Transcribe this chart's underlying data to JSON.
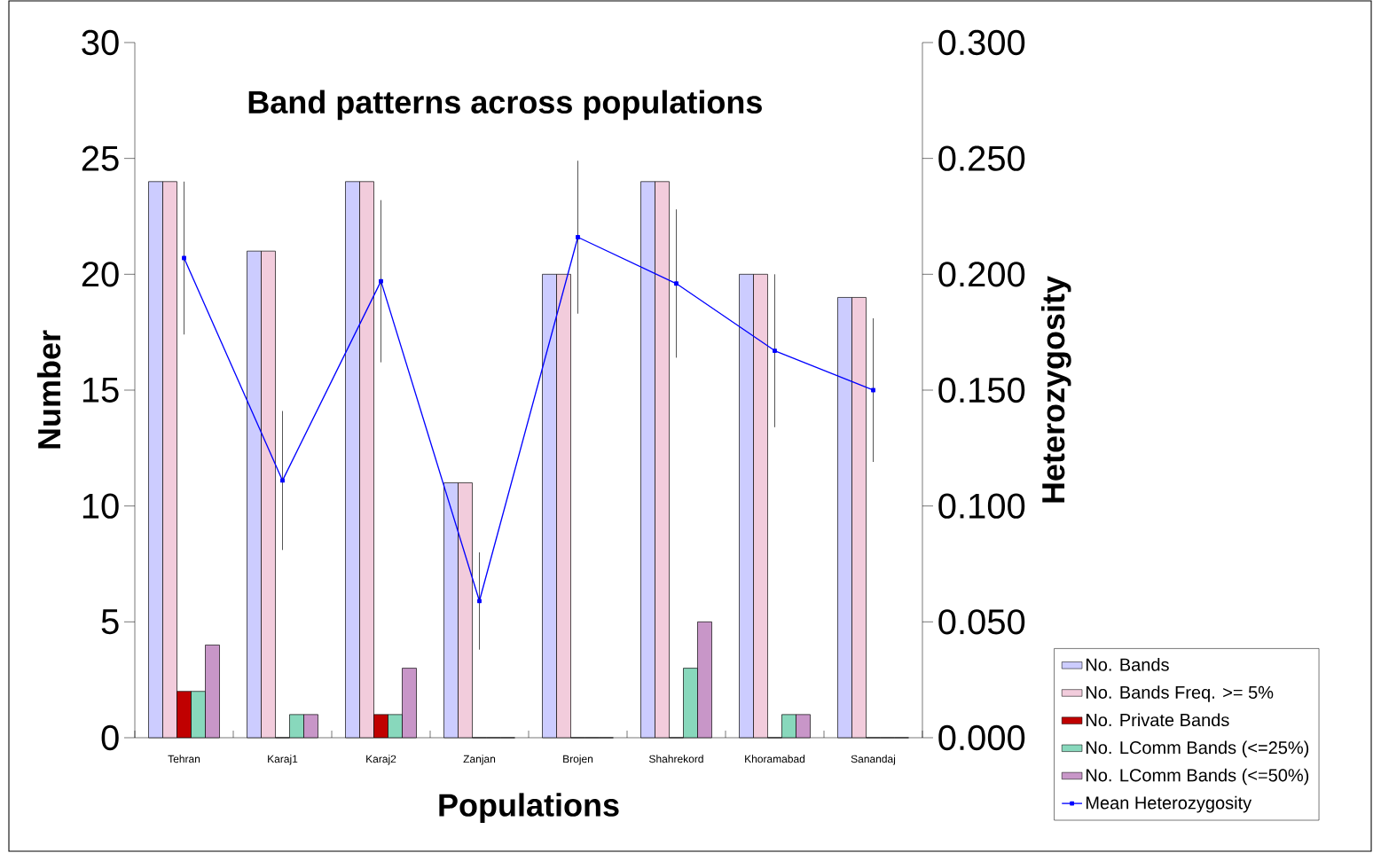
{
  "chart_data": {
    "type": "bar",
    "title": "Band patterns across populations",
    "xlabel": "Populations",
    "ylabel": "Number",
    "y2label": "Heterozygosity",
    "categories": [
      "Tehran",
      "Karaj1",
      "Karaj2",
      "Zanjan",
      "Brojen",
      "Shahrekord",
      "Khoramabad",
      "Sanandaj"
    ],
    "series": [
      {
        "name": "No. Bands",
        "color": "#ccccff",
        "values": [
          24,
          21,
          24,
          11,
          20,
          24,
          20,
          19
        ]
      },
      {
        "name": "No. Bands Freq. >= 5%",
        "color": "#f2ccdc",
        "values": [
          24,
          21,
          24,
          11,
          20,
          24,
          20,
          19
        ]
      },
      {
        "name": "No. Private Bands",
        "color": "#c00000",
        "values": [
          2,
          0,
          1,
          0,
          0,
          0,
          0,
          0
        ]
      },
      {
        "name": "No. LComm Bands (<=25%)",
        "color": "#88d8bc",
        "values": [
          2,
          1,
          1,
          0,
          0,
          3,
          1,
          0
        ]
      },
      {
        "name": "No. LComm Bands (<=50%)",
        "color": "#c896c8",
        "values": [
          4,
          1,
          3,
          0,
          0,
          5,
          1,
          0
        ]
      },
      {
        "name": "Mean Heterozygosity",
        "type": "line",
        "axis": "y2",
        "color": "#0000ff",
        "marker": "square",
        "values": [
          0.207,
          0.111,
          0.197,
          0.059,
          0.216,
          0.196,
          0.167,
          0.15
        ],
        "errors": [
          0.033,
          0.03,
          0.035,
          0.021,
          0.033,
          0.032,
          0.033,
          0.031
        ]
      }
    ],
    "ylim": [
      0,
      30
    ],
    "yticks": [
      0,
      5,
      10,
      15,
      20,
      25,
      30
    ],
    "y2lim": [
      0,
      0.3
    ],
    "y2ticks": [
      {
        "value": 0,
        "label": "0.000"
      },
      {
        "value": 0.05,
        "label": "0.050"
      },
      {
        "value": 0.1,
        "label": "0.100"
      },
      {
        "value": 0.15,
        "label": "0.150"
      },
      {
        "value": 0.2,
        "label": "0.200"
      },
      {
        "value": 0.25,
        "label": "0.250"
      },
      {
        "value": 0.3,
        "label": "0.300"
      }
    ],
    "legend": "right"
  }
}
